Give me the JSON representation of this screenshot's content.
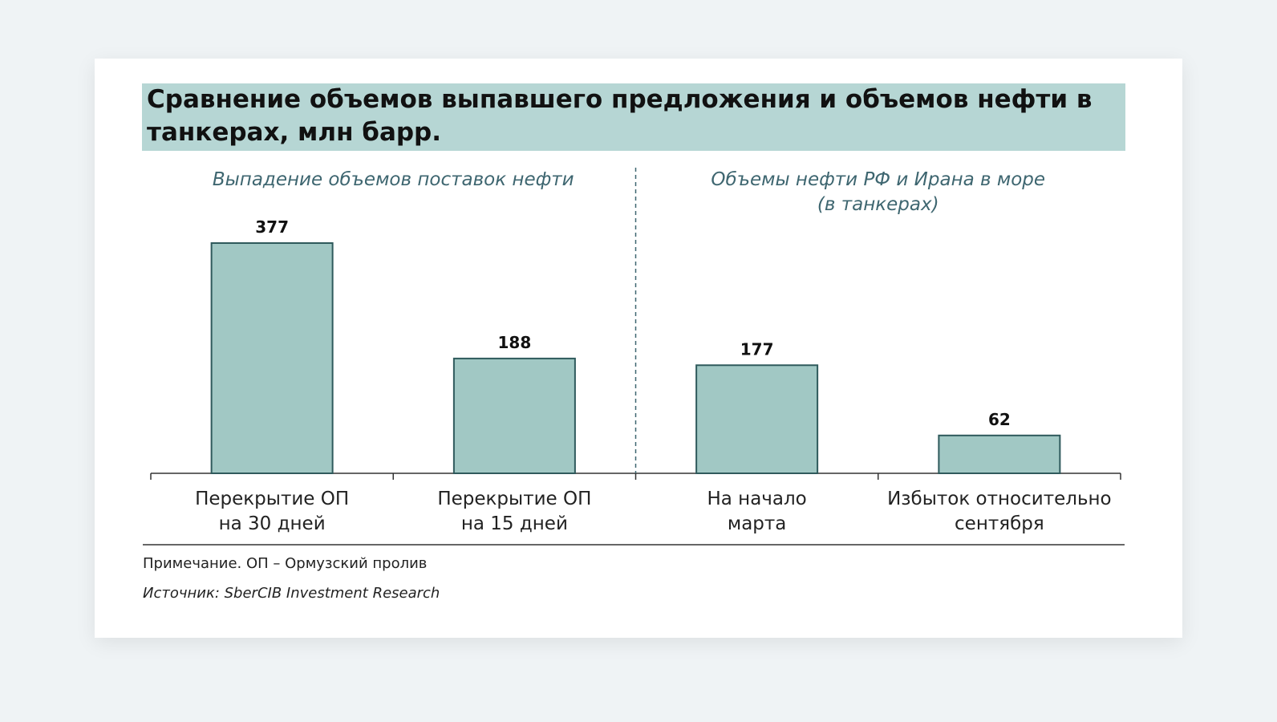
{
  "chart_data": {
    "type": "bar",
    "title": "Сравнение объемов выпавшего предложения и объемов нефти в танкерах, млн барр.",
    "groups": [
      {
        "label": [
          "Выпадение объемов поставок нефти"
        ],
        "categories": [
          [
            "Перекрытие ОП",
            "на 30 дней"
          ],
          [
            "Перекрытие ОП",
            "на 15 дней"
          ]
        ],
        "values": [
          377,
          188
        ]
      },
      {
        "label": [
          "Объемы нефти РФ и Ирана в море",
          "(в танкерах)"
        ],
        "categories": [
          [
            "На начало",
            "марта"
          ],
          [
            "Избыток относительно",
            "сентября"
          ]
        ],
        "values": [
          177,
          62
        ]
      }
    ],
    "ylim": [
      0,
      377
    ],
    "grid": false,
    "bar_color": "#a1c8c4",
    "bar_edge_color": "#2f5a5c"
  },
  "footer": {
    "note": "Примечание. ОП – Ормузский пролив",
    "source": "Источник: SberCIB Investment Research"
  }
}
